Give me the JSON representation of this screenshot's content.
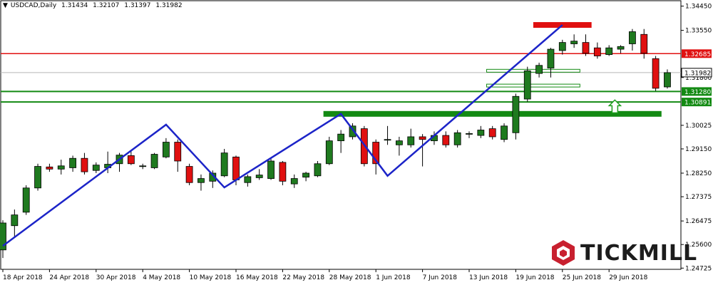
{
  "header": {
    "marker": "▼",
    "symbol": "USDCAD,Daily",
    "ohlc": [
      "1.31434",
      "1.32107",
      "1.31397",
      "1.31982"
    ]
  },
  "brand": {
    "name": "TICKMILL",
    "icon": "tickmill-hexagon-logo-icon",
    "color": "#c8202f"
  },
  "colors": {
    "bull": "#1f7a1f",
    "bear": "#e01010",
    "trend": "#1c24c8",
    "support": "#138a13",
    "resistance": "#e01010"
  },
  "chart_data": {
    "type": "candlestick",
    "symbol": "USDCAD",
    "timeframe": "Daily",
    "y_ticks": [
      "1.34450",
      "1.33550",
      "1.31800",
      "1.30025",
      "1.29150",
      "1.28250",
      "1.27375",
      "1.26475",
      "1.25600",
      "1.24725"
    ],
    "x_ticks": [
      "18 Apr 2018",
      "24 Apr 2018",
      "30 Apr 2018",
      "4 May 2018",
      "10 May 2018",
      "16 May 2018",
      "22 May 2018",
      "28 May 2018",
      "1 Jun 2018",
      "7 Jun 2018",
      "13 Jun 2018",
      "19 Jun 2018",
      "25 Jun 2018",
      "29 Jun 2018"
    ],
    "x_tick_index": [
      0,
      4,
      8,
      12,
      16,
      20,
      24,
      28,
      32,
      36,
      40,
      44,
      48,
      52
    ],
    "ylim": [
      1.2468,
      1.3465
    ],
    "grid": false,
    "candles": [
      {
        "o": 1.254,
        "h": 1.265,
        "l": 1.251,
        "c": 1.264
      },
      {
        "o": 1.263,
        "h": 1.269,
        "l": 1.259,
        "c": 1.267
      },
      {
        "o": 1.268,
        "h": 1.278,
        "l": 1.267,
        "c": 1.277
      },
      {
        "o": 1.277,
        "h": 1.286,
        "l": 1.276,
        "c": 1.285
      },
      {
        "o": 1.2848,
        "h": 1.286,
        "l": 1.283,
        "c": 1.284
      },
      {
        "o": 1.284,
        "h": 1.2875,
        "l": 1.282,
        "c": 1.2852
      },
      {
        "o": 1.2845,
        "h": 1.289,
        "l": 1.283,
        "c": 1.288
      },
      {
        "o": 1.288,
        "h": 1.29,
        "l": 1.282,
        "c": 1.283
      },
      {
        "o": 1.2835,
        "h": 1.2865,
        "l": 1.2825,
        "c": 1.2855
      },
      {
        "o": 1.2845,
        "h": 1.2905,
        "l": 1.2825,
        "c": 1.2858
      },
      {
        "o": 1.286,
        "h": 1.29,
        "l": 1.283,
        "c": 1.2892
      },
      {
        "o": 1.289,
        "h": 1.291,
        "l": 1.2855,
        "c": 1.286
      },
      {
        "o": 1.285,
        "h": 1.286,
        "l": 1.284,
        "c": 1.2852
      },
      {
        "o": 1.2845,
        "h": 1.29,
        "l": 1.284,
        "c": 1.2895
      },
      {
        "o": 1.2885,
        "h": 1.2955,
        "l": 1.288,
        "c": 1.294
      },
      {
        "o": 1.294,
        "h": 1.295,
        "l": 1.283,
        "c": 1.287
      },
      {
        "o": 1.285,
        "h": 1.286,
        "l": 1.278,
        "c": 1.279
      },
      {
        "o": 1.279,
        "h": 1.282,
        "l": 1.276,
        "c": 1.2805
      },
      {
        "o": 1.2795,
        "h": 1.2835,
        "l": 1.277,
        "c": 1.2825
      },
      {
        "o": 1.2815,
        "h": 1.2915,
        "l": 1.281,
        "c": 1.29
      },
      {
        "o": 1.2885,
        "h": 1.289,
        "l": 1.278,
        "c": 1.28
      },
      {
        "o": 1.279,
        "h": 1.282,
        "l": 1.2775,
        "c": 1.2812
      },
      {
        "o": 1.2808,
        "h": 1.284,
        "l": 1.28,
        "c": 1.2818
      },
      {
        "o": 1.2805,
        "h": 1.288,
        "l": 1.28,
        "c": 1.287
      },
      {
        "o": 1.2865,
        "h": 1.287,
        "l": 1.278,
        "c": 1.2795
      },
      {
        "o": 1.2785,
        "h": 1.282,
        "l": 1.277,
        "c": 1.2805
      },
      {
        "o": 1.281,
        "h": 1.283,
        "l": 1.2795,
        "c": 1.2825
      },
      {
        "o": 1.2815,
        "h": 1.287,
        "l": 1.281,
        "c": 1.286
      },
      {
        "o": 1.286,
        "h": 1.296,
        "l": 1.2855,
        "c": 1.2945
      },
      {
        "o": 1.2945,
        "h": 1.2985,
        "l": 1.29,
        "c": 1.297
      },
      {
        "o": 1.296,
        "h": 1.301,
        "l": 1.295,
        "c": 1.3
      },
      {
        "o": 1.299,
        "h": 1.3,
        "l": 1.285,
        "c": 1.286
      },
      {
        "o": 1.294,
        "h": 1.295,
        "l": 1.282,
        "c": 1.286
      },
      {
        "o": 1.295,
        "h": 1.3,
        "l": 1.293,
        "c": 1.295
      },
      {
        "o": 1.293,
        "h": 1.296,
        "l": 1.289,
        "c": 1.2945
      },
      {
        "o": 1.293,
        "h": 1.299,
        "l": 1.292,
        "c": 1.296
      },
      {
        "o": 1.296,
        "h": 1.297,
        "l": 1.285,
        "c": 1.295
      },
      {
        "o": 1.2945,
        "h": 1.298,
        "l": 1.293,
        "c": 1.2965
      },
      {
        "o": 1.2965,
        "h": 1.298,
        "l": 1.292,
        "c": 1.293
      },
      {
        "o": 1.293,
        "h": 1.2985,
        "l": 1.292,
        "c": 1.2975
      },
      {
        "o": 1.297,
        "h": 1.298,
        "l": 1.2955,
        "c": 1.2972
      },
      {
        "o": 1.2965,
        "h": 1.3,
        "l": 1.2955,
        "c": 1.2985
      },
      {
        "o": 1.299,
        "h": 1.3,
        "l": 1.295,
        "c": 1.296
      },
      {
        "o": 1.295,
        "h": 1.301,
        "l": 1.294,
        "c": 1.3
      },
      {
        "o": 1.2975,
        "h": 1.312,
        "l": 1.295,
        "c": 1.311
      },
      {
        "o": 1.31,
        "h": 1.322,
        "l": 1.309,
        "c": 1.3205
      },
      {
        "o": 1.3195,
        "h": 1.3235,
        "l": 1.318,
        "c": 1.3225
      },
      {
        "o": 1.3215,
        "h": 1.329,
        "l": 1.318,
        "c": 1.3285
      },
      {
        "o": 1.328,
        "h": 1.332,
        "l": 1.3265,
        "c": 1.331
      },
      {
        "o": 1.3305,
        "h": 1.334,
        "l": 1.329,
        "c": 1.3315
      },
      {
        "o": 1.331,
        "h": 1.334,
        "l": 1.326,
        "c": 1.327
      },
      {
        "o": 1.329,
        "h": 1.331,
        "l": 1.325,
        "c": 1.326
      },
      {
        "o": 1.3265,
        "h": 1.33,
        "l": 1.326,
        "c": 1.329
      },
      {
        "o": 1.3285,
        "h": 1.33,
        "l": 1.327,
        "c": 1.3295
      },
      {
        "o": 1.3305,
        "h": 1.336,
        "l": 1.328,
        "c": 1.335
      },
      {
        "o": 1.334,
        "h": 1.336,
        "l": 1.325,
        "c": 1.327
      },
      {
        "o": 1.325,
        "h": 1.326,
        "l": 1.313,
        "c": 1.314
      },
      {
        "o": 1.3145,
        "h": 1.321,
        "l": 1.3139,
        "c": 1.3198
      }
    ],
    "trend_line": [
      {
        "i": 0,
        "v": 1.2555
      },
      {
        "i": 14,
        "v": 1.3005
      },
      {
        "i": 19,
        "v": 1.2772
      },
      {
        "i": 29,
        "v": 1.3045
      },
      {
        "i": 33,
        "v": 1.2815
      },
      {
        "i": 48,
        "v": 1.3375
      }
    ],
    "levels": [
      {
        "label": "1.32685",
        "value": 1.32685,
        "color": "#e01010",
        "kind": "resistance"
      },
      {
        "label": "1.31982",
        "value": 1.31982,
        "color": "#000000",
        "kind": "current-price"
      },
      {
        "label": "1.31280",
        "value": 1.3128,
        "color": "#138a13",
        "kind": "support"
      },
      {
        "label": "1.30891",
        "value": 1.30891,
        "color": "#138a13",
        "kind": "support"
      }
    ],
    "zones": [
      {
        "kind": "resistance",
        "from_i": 45.5,
        "to_i": 50.5,
        "value": 1.3375,
        "color": "#e01010"
      },
      {
        "kind": "support",
        "from_i": 27.5,
        "to_i": 56.5,
        "value": 1.3045,
        "color": "#138a13"
      }
    ],
    "arrow": {
      "i": 52.5,
      "value": 1.307,
      "direction": "up",
      "color": "#1e9e1e"
    }
  }
}
